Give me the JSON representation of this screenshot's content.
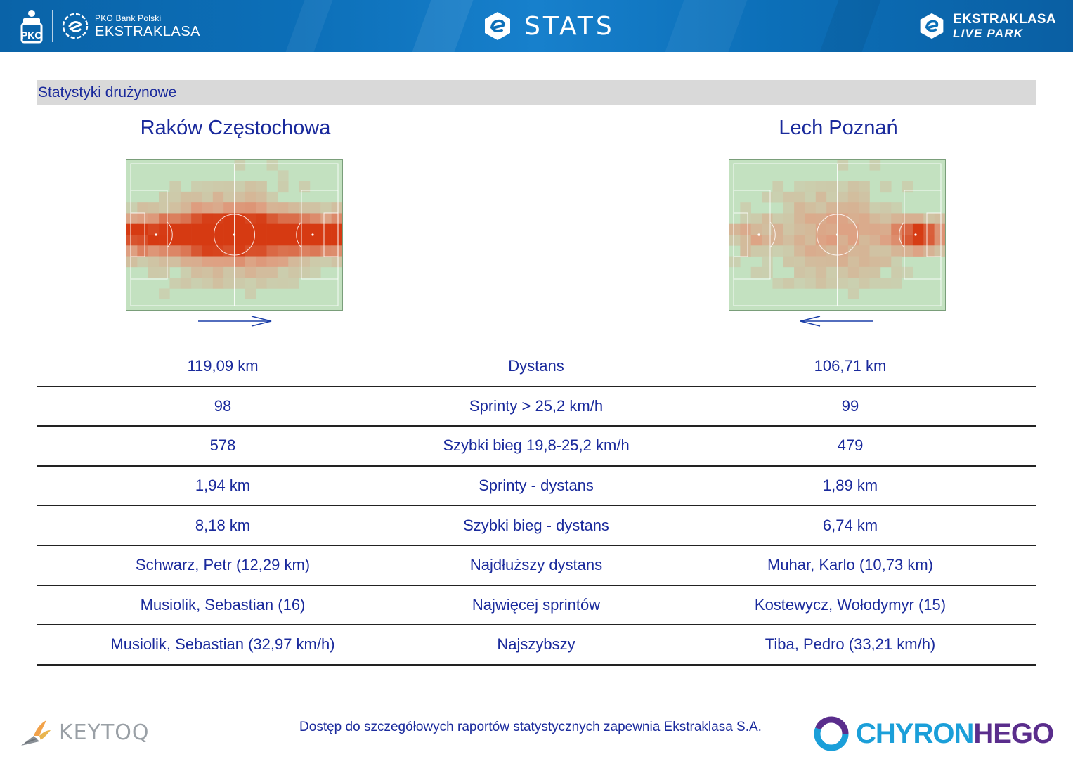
{
  "header": {
    "brand_small": "PKO Bank Polski",
    "brand_big": "EKSTRAKLASA",
    "title": "STATS",
    "right_line1": "EKSTRAKLASA",
    "right_line2": "LIVE PARK"
  },
  "section": {
    "title": "Statystyki drużynowe"
  },
  "teams": {
    "home": "Raków Częstochowa",
    "away": "Lech Poznań"
  },
  "stats": [
    {
      "home": "119,09 km",
      "label": "Dystans",
      "away": "106,71 km"
    },
    {
      "home": "98",
      "label": "Sprinty > 25,2 km/h",
      "away": "99"
    },
    {
      "home": "578",
      "label": "Szybki bieg 19,8-25,2 km/h",
      "away": "479"
    },
    {
      "home": "1,94 km",
      "label": "Sprinty - dystans",
      "away": "1,89 km"
    },
    {
      "home": "8,18 km",
      "label": "Szybki bieg - dystans",
      "away": "6,74 km"
    },
    {
      "home": "Schwarz, Petr (12,29 km)",
      "label": "Najdłuższy dystans",
      "away": "Muhar, Karlo (10,73 km)"
    },
    {
      "home": "Musiolik, Sebastian (16)",
      "label": "Najwięcej sprintów",
      "away": "Kostewycz, Wołodymyr (15)"
    },
    {
      "home": "Musiolik, Sebastian (32,97 km/h)",
      "label": "Najszybszy",
      "away": "Tiba, Pedro (33,21 km/h)"
    }
  ],
  "footer": {
    "note": "Dostęp do szczegółowych raportów statystycznych zapewnia Ekstraklasa S.A.",
    "left_logo": "KEYTOQ",
    "right_logo_part1": "CHYRON",
    "right_logo_part2": "HEGO"
  },
  "colors": {
    "header_blue": "#0c6fb8",
    "text_blue": "#1a2a9c",
    "section_grey": "#d9d9d9",
    "pitch_green": "#c3e1c0",
    "heat_red": "#d63a12"
  },
  "icons": {
    "header_left": [
      "pko-logo-icon",
      "ekstraklasa-logo-icon"
    ],
    "header_center": "ekstraklasa-e-icon",
    "header_right": "ekstraklasa-e-icon",
    "direction_home": "arrow-right-icon",
    "direction_away": "arrow-left-icon"
  }
}
